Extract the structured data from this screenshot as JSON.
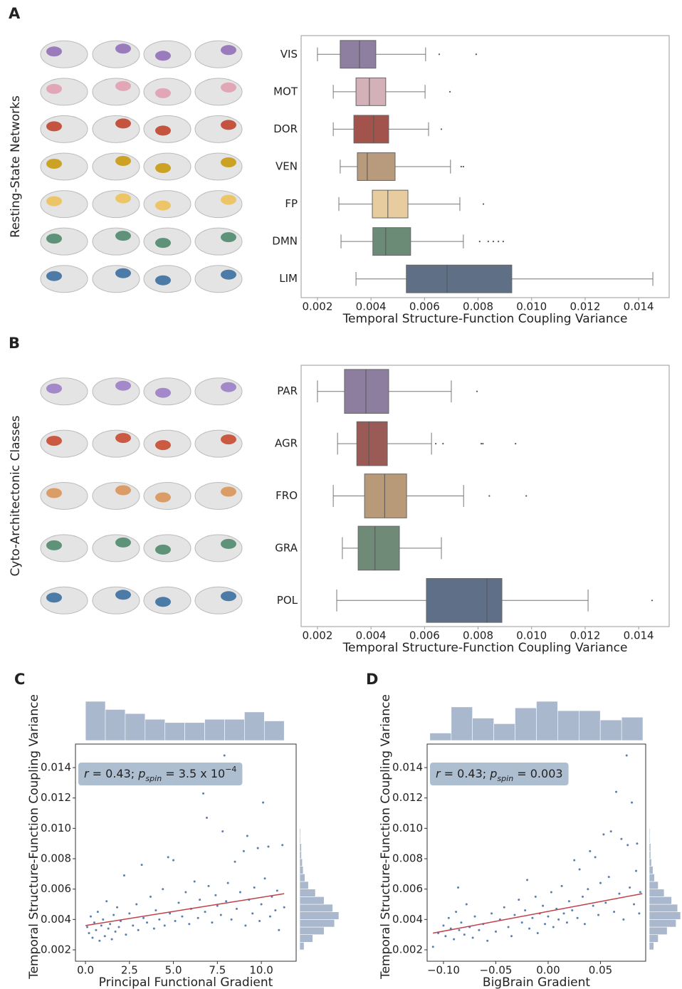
{
  "chart_data": [
    {
      "type": "boxplot",
      "panel": "A",
      "ylabel": "Resting-State Networks",
      "xlabel": "Temporal Structure-Function Coupling Variance",
      "categories": [
        "VIS",
        "MOT",
        "DOR",
        "VEN",
        "FP",
        "DMN",
        "LIM"
      ],
      "colors": [
        "#8e7fa0",
        "#d4b0b9",
        "#a2534b",
        "#b89a7c",
        "#e6cc9e",
        "#6c8b77",
        "#5e6f86"
      ],
      "region_colors": [
        "#9170b8",
        "#e0a0b0",
        "#c0442c",
        "#c99a10",
        "#ecc15a",
        "#4f8a6e",
        "#3b6fa0"
      ],
      "boxes": [
        {
          "min": 0.002,
          "q1": 0.00285,
          "median": 0.00357,
          "q3": 0.00418,
          "max": 0.00604,
          "outliers": [
            0.00655,
            0.00793
          ]
        },
        {
          "min": 0.00259,
          "q1": 0.00344,
          "median": 0.00394,
          "q3": 0.00455,
          "max": 0.00602,
          "outliers": [
            0.00695
          ]
        },
        {
          "min": 0.00259,
          "q1": 0.00336,
          "median": 0.0041,
          "q3": 0.00466,
          "max": 0.00615,
          "outliers": [
            0.00663
          ]
        },
        {
          "min": 0.00285,
          "q1": 0.00349,
          "median": 0.00386,
          "q3": 0.0049,
          "max": 0.00697,
          "outliers": [
            0.00737,
            0.00745
          ]
        },
        {
          "min": 0.0028,
          "q1": 0.00405,
          "median": 0.00463,
          "q3": 0.00538,
          "max": 0.00732,
          "outliers": [
            0.0082
          ]
        },
        {
          "min": 0.00288,
          "q1": 0.00407,
          "median": 0.00455,
          "q3": 0.00548,
          "max": 0.00745,
          "outliers": [
            0.00806,
            0.00838,
            0.00857,
            0.00876,
            0.00894
          ]
        },
        {
          "min": 0.00344,
          "q1": 0.00532,
          "median": 0.00684,
          "q3": 0.00926,
          "max": 0.01453,
          "outliers": []
        }
      ],
      "xlim": [
        0.00139,
        0.01514
      ],
      "xticks": [
        0.002,
        0.004,
        0.006,
        0.008,
        {
          "value": 0.01,
          "label": "0.010"
        },
        0.012,
        0.014
      ]
    },
    {
      "type": "boxplot",
      "panel": "B",
      "ylabel": "Cyto-Architectonic Classes",
      "xlabel": "Temporal Structure-Function Coupling Variance",
      "categories": [
        "PAR",
        "AGR",
        "FRO",
        "GRA",
        "POL"
      ],
      "colors": [
        "#8d7ea0",
        "#9a5a55",
        "#b89978",
        "#708a78",
        "#5f6f87"
      ],
      "region_colors": [
        "#9b7dc6",
        "#c84a30",
        "#d9955a",
        "#4f8a6e",
        "#3b6fa0"
      ],
      "boxes": [
        {
          "min": 0.002,
          "q1": 0.00301,
          "median": 0.00381,
          "q3": 0.00466,
          "max": 0.007,
          "outliers": [
            0.00796
          ]
        },
        {
          "min": 0.00275,
          "q1": 0.00347,
          "median": 0.00392,
          "q3": 0.00461,
          "max": 0.00626,
          "outliers": [
            0.00642,
            0.00669,
            0.00812,
            0.00818,
            0.0094
          ]
        },
        {
          "min": 0.00259,
          "q1": 0.00376,
          "median": 0.00451,
          "q3": 0.00533,
          "max": 0.00746,
          "outliers": [
            0.00842,
            0.0098
          ]
        },
        {
          "min": 0.00293,
          "q1": 0.00352,
          "median": 0.00415,
          "q3": 0.00506,
          "max": 0.00663,
          "outliers": []
        },
        {
          "min": 0.00272,
          "q1": 0.00607,
          "median": 0.00833,
          "q3": 0.00889,
          "max": 0.01211,
          "outliers": [
            0.0145
          ]
        }
      ],
      "xlim": [
        0.00139,
        0.01514
      ],
      "xticks": [
        0.002,
        0.004,
        0.006,
        0.008,
        {
          "value": 0.01,
          "label": "0.010"
        },
        0.012,
        0.014
      ]
    },
    {
      "type": "scatter",
      "panel": "C",
      "xlabel": "Principal Functional Gradient",
      "ylabel": "Temporal Structure-Function Coupling Variance",
      "annotation": [
        {
          "text": "r",
          "style": "italic"
        },
        {
          "text": " = 0.43; "
        },
        {
          "text": "p",
          "style": "italic"
        },
        {
          "text": "spin",
          "style": "sub"
        },
        {
          "text": " = 3.5 x 10"
        },
        {
          "text": "−4",
          "style": "sup"
        }
      ],
      "color": "#5a7eae",
      "fit_color": "#c0404a",
      "hist_color": "#a9b8cc",
      "x": [
        0.1,
        0.2,
        0.3,
        0.4,
        0.5,
        0.6,
        0.7,
        0.8,
        0.9,
        1.0,
        1.1,
        1.2,
        1.3,
        1.4,
        1.5,
        1.6,
        1.7,
        1.8,
        1.9,
        2.0,
        2.2,
        2.3,
        2.5,
        2.7,
        2.9,
        3.0,
        3.2,
        3.3,
        3.5,
        3.7,
        3.9,
        4.0,
        4.2,
        4.4,
        4.5,
        4.7,
        4.8,
        5.0,
        5.1,
        5.3,
        5.5,
        5.7,
        5.9,
        6.0,
        6.2,
        6.4,
        6.5,
        6.7,
        6.8,
        6.9,
        7.0,
        7.2,
        7.4,
        7.5,
        7.7,
        7.8,
        7.9,
        8.0,
        8.1,
        8.3,
        8.5,
        8.6,
        8.8,
        9.0,
        9.1,
        9.2,
        9.3,
        9.5,
        9.6,
        9.8,
        9.9,
        10.0,
        10.1,
        10.2,
        10.4,
        10.5,
        10.6,
        10.8,
        10.9,
        11.0,
        11.2,
        11.3
      ],
      "values": [
        0.0035,
        0.0031,
        0.0042,
        0.0028,
        0.0038,
        0.0033,
        0.0045,
        0.0026,
        0.0036,
        0.004,
        0.0029,
        0.0052,
        0.0034,
        0.0037,
        0.0027,
        0.0043,
        0.0032,
        0.0048,
        0.0035,
        0.0039,
        0.0069,
        0.003,
        0.0044,
        0.0036,
        0.005,
        0.0033,
        0.0076,
        0.0041,
        0.0038,
        0.0055,
        0.0034,
        0.0046,
        0.004,
        0.006,
        0.0036,
        0.0081,
        0.0044,
        0.0079,
        0.0039,
        0.0051,
        0.0042,
        0.0058,
        0.0037,
        0.0047,
        0.0065,
        0.0041,
        0.0053,
        0.0123,
        0.0045,
        0.0107,
        0.0062,
        0.0038,
        0.0056,
        0.0049,
        0.0043,
        0.0098,
        0.0148,
        0.0052,
        0.0064,
        0.004,
        0.0078,
        0.0047,
        0.0058,
        0.0085,
        0.0036,
        0.0095,
        0.0053,
        0.0044,
        0.0061,
        0.0087,
        0.0039,
        0.005,
        0.0117,
        0.0067,
        0.0088,
        0.0042,
        0.0055,
        0.0046,
        0.0059,
        0.0033,
        0.0089,
        0.0048
      ],
      "fit": {
        "x": [
          0,
          11.3
        ],
        "y": [
          0.0036,
          0.0057
        ]
      },
      "top_hist": {
        "bins": [
          0,
          1.13,
          2.26,
          3.39,
          4.52,
          5.65,
          6.78,
          7.91,
          9.04,
          10.17,
          11.3
        ],
        "counts": [
          48,
          38,
          33,
          26,
          22,
          22,
          26,
          26,
          35,
          24
        ]
      },
      "right_hist": {
        "bins": [
          0.002,
          0.0025,
          0.003,
          0.0035,
          0.004,
          0.0045,
          0.005,
          0.0055,
          0.006,
          0.0065,
          0.007,
          0.0075,
          0.008,
          0.0085,
          0.009,
          0.0095,
          0.01
        ],
        "counts": [
          5,
          15,
          28,
          40,
          45,
          38,
          28,
          18,
          10,
          6,
          4,
          3,
          2,
          2,
          1,
          1
        ]
      },
      "xlim": [
        -0.57,
        11.98
      ],
      "ylim": [
        0.00125,
        0.01555
      ],
      "xticks": [
        {
          "value": 0,
          "label": "0.0"
        },
        2.5,
        {
          "value": 5,
          "label": "5.0"
        },
        7.5,
        {
          "value": 10,
          "label": "10.0"
        }
      ],
      "yticks": [
        0.002,
        0.004,
        0.006,
        0.008,
        {
          "value": 0.01,
          "label": "0.010"
        },
        0.012,
        0.014
      ]
    },
    {
      "type": "scatter",
      "panel": "D",
      "xlabel": "BigBrain Gradient",
      "ylabel": "Temporal Structure-Function Coupling Variance",
      "annotation": [
        {
          "text": "r",
          "style": "italic"
        },
        {
          "text": " = 0.43; "
        },
        {
          "text": "p",
          "style": "italic"
        },
        {
          "text": "spin",
          "style": "sub"
        },
        {
          "text": " = 0.003"
        }
      ],
      "color": "#5a7eae",
      "fit_color": "#c0404a",
      "hist_color": "#a9b8cc",
      "x": [
        -0.11,
        -0.105,
        -0.1,
        -0.098,
        -0.095,
        -0.093,
        -0.09,
        -0.088,
        -0.086,
        -0.085,
        -0.083,
        -0.08,
        -0.078,
        -0.075,
        -0.072,
        -0.07,
        -0.066,
        -0.062,
        -0.058,
        -0.054,
        -0.05,
        -0.046,
        -0.042,
        -0.038,
        -0.035,
        -0.032,
        -0.028,
        -0.025,
        -0.022,
        -0.02,
        -0.018,
        -0.015,
        -0.012,
        -0.01,
        -0.008,
        -0.005,
        -0.003,
        0,
        0.003,
        0.005,
        0.008,
        0.01,
        0.013,
        0.015,
        0.018,
        0.02,
        0.023,
        0.025,
        0.028,
        0.03,
        0.033,
        0.035,
        0.038,
        0.04,
        0.043,
        0.045,
        0.048,
        0.05,
        0.053,
        0.055,
        0.058,
        0.06,
        0.063,
        0.065,
        0.068,
        0.07,
        0.072,
        0.075,
        0.076,
        0.078,
        0.08,
        0.082,
        0.084,
        0.085,
        0.087,
        0.088
      ],
      "values": [
        0.0022,
        0.0031,
        0.0036,
        0.0029,
        0.0041,
        0.0034,
        0.0027,
        0.0045,
        0.0061,
        0.0033,
        0.0038,
        0.003,
        0.005,
        0.0035,
        0.0028,
        0.0042,
        0.0033,
        0.0037,
        0.0026,
        0.0044,
        0.0032,
        0.004,
        0.0048,
        0.0035,
        0.0029,
        0.0043,
        0.0053,
        0.0038,
        0.0046,
        0.0066,
        0.0034,
        0.0041,
        0.0055,
        0.0031,
        0.0044,
        0.0049,
        0.0037,
        0.0042,
        0.0058,
        0.0035,
        0.0047,
        0.004,
        0.0062,
        0.0044,
        0.0038,
        0.0052,
        0.0046,
        0.0079,
        0.0041,
        0.0073,
        0.0055,
        0.0037,
        0.006,
        0.0085,
        0.0049,
        0.0081,
        0.0043,
        0.0064,
        0.0096,
        0.0051,
        0.0068,
        0.0098,
        0.0045,
        0.0124,
        0.0057,
        0.0093,
        0.004,
        0.0148,
        0.0089,
        0.0061,
        0.0117,
        0.005,
        0.0072,
        0.009,
        0.0044,
        0.0058
      ],
      "fit": {
        "x": [
          -0.11,
          0.09
        ],
        "y": [
          0.0031,
          0.0057
        ]
      },
      "top_hist": {
        "bins": [
          -0.113,
          -0.0926,
          -0.0723,
          -0.0519,
          -0.0316,
          -0.0112,
          0.0091,
          0.0295,
          0.0498,
          0.0702,
          0.0905
        ],
        "counts": [
          8,
          36,
          24,
          18,
          35,
          42,
          32,
          32,
          22,
          25
        ]
      },
      "right_hist": {
        "bins": [
          0.002,
          0.0025,
          0.003,
          0.0035,
          0.004,
          0.0045,
          0.005,
          0.0055,
          0.006,
          0.0065,
          0.007,
          0.0075,
          0.008,
          0.0085,
          0.009,
          0.0095,
          0.01
        ],
        "counts": [
          6,
          12,
          24,
          36,
          42,
          38,
          30,
          20,
          12,
          7,
          5,
          3,
          2,
          2,
          1,
          1
        ]
      },
      "xlim": [
        -0.1156,
        0.0932
      ],
      "ylim": [
        0.00125,
        0.01555
      ],
      "xticks": [
        {
          "value": -0.1,
          "label": "−0.10"
        },
        {
          "value": -0.05,
          "label": "−0.05"
        },
        {
          "value": 0,
          "label": "0.00"
        },
        0.05
      ],
      "yticks": [
        0.002,
        0.004,
        0.006,
        0.008,
        {
          "value": 0.01,
          "label": "0.010"
        },
        0.012,
        0.014
      ]
    }
  ]
}
